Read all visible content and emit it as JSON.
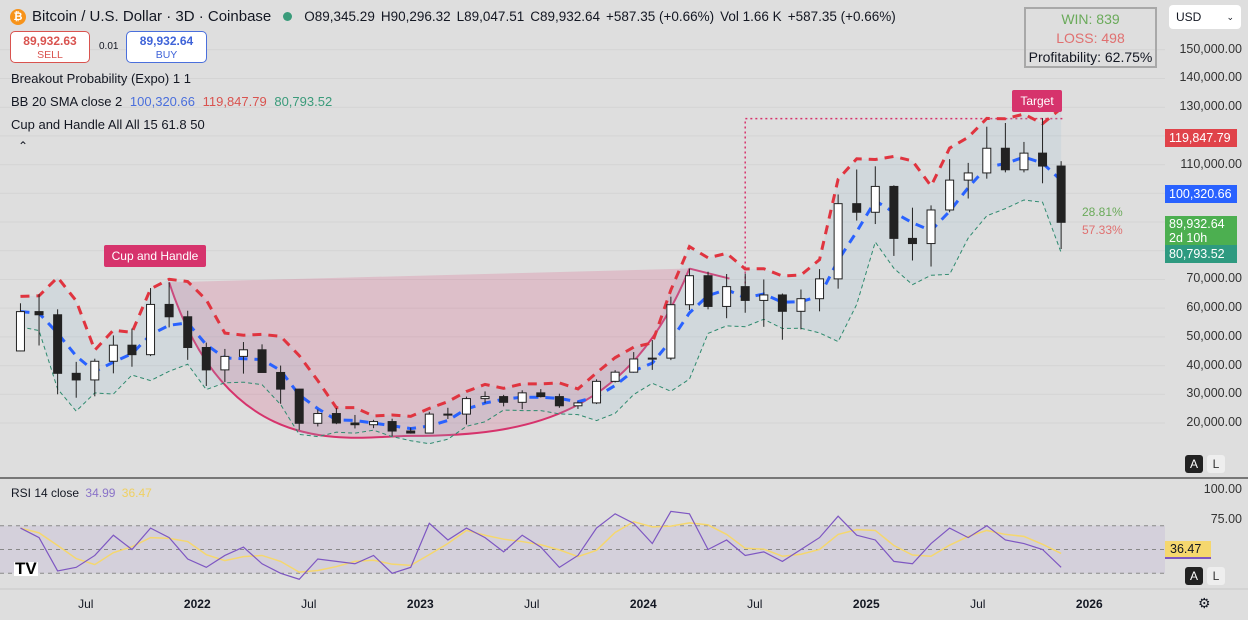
{
  "header": {
    "symbol": "Bitcoin / U.S. Dollar · 3D · Coinbase",
    "coin_icon": "bitcoin-icon",
    "open": "O89,345.29",
    "high": "H90,296.32",
    "low": "L89,047.51",
    "close": "C89,932.64",
    "change": "+587.35 (+0.66%)",
    "volume": "Vol 1.66 K",
    "change2": "+587.35 (+0.66%)"
  },
  "trade": {
    "sell_price": "89,932.63",
    "sell_label": "SELL",
    "spread": "0.01",
    "buy_price": "89,932.64",
    "buy_label": "BUY"
  },
  "indicators": {
    "breakout": "Breakout Probability (Expo) 1 1",
    "bb_label": "BB 20 SMA close 2",
    "bb_basis": "100,320.66",
    "bb_upper": "119,847.79",
    "bb_lower": "80,793.52",
    "cup": "Cup and Handle All All 15 61.8 50",
    "collapse_icon": "chevron-up-icon"
  },
  "stats": {
    "win": "WIN: 839",
    "loss": "LOSS: 498",
    "profitability": "Profitability: 62.75%"
  },
  "currency": "USD",
  "breakout_pct": {
    "up": "28.81%",
    "down": "57.33%"
  },
  "price_tags": {
    "upper": "119,847.79",
    "basis": "100,320.66",
    "last": "89,932.64",
    "countdown": "2d 10h",
    "lower": "80,793.52"
  },
  "rsi": {
    "label": "RSI 14 close",
    "value": "34.99",
    "signal": "36.47",
    "tag": "36.47"
  },
  "scale_buttons": {
    "auto": "A",
    "log": "L"
  },
  "colors": {
    "up": "#26a69a",
    "down": "#ef5350",
    "candle": "#222",
    "bb_upper": "#e0343f",
    "bb_basis": "#2962ff",
    "bb_lower": "#2e8a6e",
    "cup": "#d6336c",
    "rsi": "#7e57c2",
    "rsi_signal": "#f5d76e"
  },
  "chart_data": {
    "type": "candlestick",
    "y_ticks": [
      "150,000.00",
      "140,000.00",
      "130,000.00",
      "110,000.00",
      "70,000.00",
      "60,000.00",
      "50,000.00",
      "40,000.00",
      "30,000.00",
      "20,000.00"
    ],
    "ylim": [
      10000,
      160000
    ],
    "x_ticks": [
      "Jul",
      "2022",
      "Jul",
      "2023",
      "Jul",
      "2024",
      "Jul",
      "2025",
      "Jul",
      "2026"
    ],
    "rsi_ticks": [
      "100.00",
      "75.00"
    ],
    "rsi_levels": [
      70,
      50,
      30
    ],
    "ohlc": [
      [
        "2021-03",
        45.1,
        61.7,
        45.0,
        58.8
      ],
      [
        "2021-04",
        58.8,
        64.9,
        47.0,
        57.7
      ],
      [
        "2021-05",
        57.7,
        59.6,
        30.0,
        37.3
      ],
      [
        "2021-06",
        37.3,
        41.3,
        28.8,
        35.0
      ],
      [
        "2021-07",
        35.0,
        42.4,
        29.3,
        41.5
      ],
      [
        "2021-08",
        41.5,
        50.5,
        37.3,
        47.1
      ],
      [
        "2021-09",
        47.1,
        52.9,
        39.6,
        43.8
      ],
      [
        "2021-10",
        43.8,
        67.0,
        43.3,
        61.3
      ],
      [
        "2021-11",
        61.3,
        69.0,
        53.3,
        57.0
      ],
      [
        "2021-12",
        57.0,
        59.1,
        42.0,
        46.3
      ],
      [
        "2022-01",
        46.3,
        48.0,
        32.9,
        38.5
      ],
      [
        "2022-02",
        38.5,
        45.8,
        34.3,
        43.2
      ],
      [
        "2022-03",
        43.2,
        48.2,
        37.2,
        45.5
      ],
      [
        "2022-04",
        45.5,
        47.4,
        37.7,
        37.6
      ],
      [
        "2022-05",
        37.6,
        40.0,
        26.7,
        31.8
      ],
      [
        "2022-06",
        31.8,
        31.9,
        17.6,
        19.9
      ],
      [
        "2022-07",
        19.9,
        24.7,
        18.8,
        23.3
      ],
      [
        "2022-08",
        23.3,
        25.2,
        19.6,
        20.0
      ],
      [
        "2022-09",
        20.0,
        22.8,
        18.1,
        19.4
      ],
      [
        "2022-10",
        19.4,
        21.1,
        18.2,
        20.5
      ],
      [
        "2022-11",
        20.5,
        21.5,
        15.5,
        17.2
      ],
      [
        "2022-12",
        17.2,
        18.4,
        16.3,
        16.5
      ],
      [
        "2023-01",
        16.5,
        23.9,
        16.5,
        23.1
      ],
      [
        "2023-02",
        23.1,
        25.3,
        21.4,
        23.1
      ],
      [
        "2023-03",
        23.1,
        29.2,
        19.5,
        28.5
      ],
      [
        "2023-04",
        28.5,
        31.0,
        26.9,
        29.2
      ],
      [
        "2023-05",
        29.2,
        29.8,
        25.8,
        27.2
      ],
      [
        "2023-06",
        27.2,
        31.4,
        24.8,
        30.5
      ],
      [
        "2023-07",
        30.5,
        31.8,
        28.9,
        29.2
      ],
      [
        "2023-08",
        29.2,
        30.2,
        25.3,
        26.0
      ],
      [
        "2023-09",
        26.0,
        27.5,
        24.9,
        27.0
      ],
      [
        "2023-10",
        27.0,
        35.2,
        26.6,
        34.5
      ],
      [
        "2023-11",
        34.5,
        38.4,
        34.1,
        37.7
      ],
      [
        "2023-12",
        37.7,
        44.7,
        37.6,
        42.3
      ],
      [
        "2024-01",
        42.3,
        48.9,
        38.5,
        42.6
      ],
      [
        "2024-02",
        42.6,
        64.0,
        41.9,
        61.2
      ],
      [
        "2024-03",
        61.2,
        73.8,
        59.3,
        71.3
      ],
      [
        "2024-04",
        71.3,
        72.7,
        59.6,
        60.6
      ],
      [
        "2024-05",
        60.6,
        71.9,
        56.5,
        67.5
      ],
      [
        "2024-06",
        67.5,
        72.0,
        58.4,
        62.7
      ],
      [
        "2024-07",
        62.7,
        70.0,
        53.5,
        64.6
      ],
      [
        "2024-08",
        64.6,
        65.1,
        49.0,
        58.9
      ],
      [
        "2024-09",
        58.9,
        66.5,
        52.6,
        63.3
      ],
      [
        "2024-10",
        63.3,
        73.6,
        58.9,
        70.2
      ],
      [
        "2024-11",
        70.2,
        99.6,
        66.8,
        96.4
      ],
      [
        "2024-12",
        96.4,
        108.3,
        90.5,
        93.4
      ],
      [
        "2025-01",
        93.4,
        109.4,
        89.3,
        102.4
      ],
      [
        "2025-02",
        102.4,
        102.8,
        78.2,
        84.3
      ],
      [
        "2025-03",
        84.3,
        95.0,
        76.6,
        82.5
      ],
      [
        "2025-04",
        82.5,
        95.8,
        74.5,
        94.2
      ],
      [
        "2025-05",
        94.2,
        111.9,
        93.4,
        104.6
      ],
      [
        "2025-06",
        104.6,
        110.6,
        98.2,
        107.1
      ],
      [
        "2025-07",
        107.1,
        123.2,
        105.1,
        115.7
      ],
      [
        "2025-08",
        115.7,
        124.5,
        107.3,
        108.2
      ],
      [
        "2025-09",
        108.2,
        117.9,
        107.3,
        114.0
      ],
      [
        "2025-10",
        114.0,
        126.2,
        103.5,
        109.5
      ],
      [
        "2025-11",
        109.5,
        111.2,
        80.6,
        89.9
      ]
    ],
    "price_unit": "thousand USD",
    "rsi_values": [
      68,
      60,
      32,
      35,
      45,
      62,
      50,
      68,
      60,
      42,
      35,
      45,
      52,
      38,
      30,
      25,
      42,
      40,
      38,
      45,
      30,
      35,
      72,
      58,
      68,
      60,
      48,
      62,
      52,
      35,
      45,
      68,
      80,
      72,
      55,
      82,
      80,
      50,
      58,
      45,
      48,
      40,
      50,
      60,
      78,
      62,
      58,
      40,
      38,
      55,
      68,
      60,
      70,
      58,
      55,
      50,
      35
    ],
    "cup_and_handle": {
      "label": "Cup and Handle",
      "left_rim": [
        "2021-11",
        69.0
      ],
      "bottom": [
        "2022-12",
        15.5
      ],
      "right_rim": [
        "2024-03",
        73.8
      ],
      "target_label": "Target",
      "target_price": 126.0,
      "target_start": "2024-06"
    }
  }
}
